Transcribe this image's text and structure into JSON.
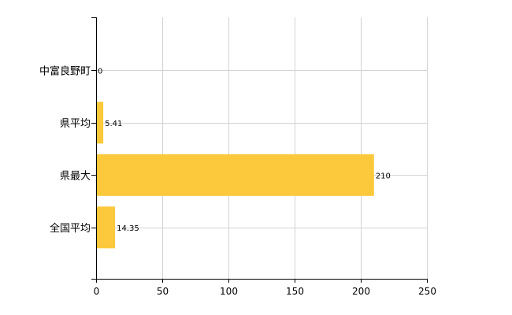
{
  "chart_data": {
    "type": "bar",
    "orientation": "horizontal",
    "categories": [
      "中富良野町",
      "県平均",
      "県最大",
      "全国平均"
    ],
    "values": [
      0,
      5.41,
      210,
      14.35
    ],
    "data_labels": [
      "0",
      "5.41",
      "210",
      "14.35"
    ],
    "title": "",
    "xlabel": "",
    "ylabel": "",
    "xlim": [
      0,
      250
    ],
    "xticks": [
      0,
      50,
      100,
      150,
      200,
      250
    ],
    "grid": true,
    "legend": "none",
    "colors": {
      "bar": "#FBC93B",
      "grid": "#D3D3D3",
      "axis": "#000000"
    }
  }
}
